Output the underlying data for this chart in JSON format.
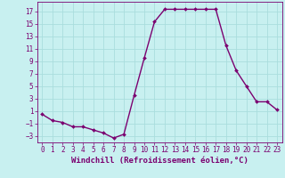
{
  "x": [
    0,
    1,
    2,
    3,
    4,
    5,
    6,
    7,
    8,
    9,
    10,
    11,
    12,
    13,
    14,
    15,
    16,
    17,
    18,
    19,
    20,
    21,
    22,
    23
  ],
  "y": [
    0.5,
    -0.5,
    -0.8,
    -1.5,
    -1.5,
    -2.0,
    -2.5,
    -3.3,
    -2.7,
    3.5,
    9.5,
    15.3,
    17.3,
    17.3,
    17.3,
    17.3,
    17.3,
    17.3,
    11.5,
    7.5,
    5.0,
    2.5,
    2.5,
    1.2
  ],
  "line_color": "#7B0070",
  "marker": "D",
  "markersize": 2.0,
  "linewidth": 1.0,
  "bg_color": "#c8f0f0",
  "grid_color": "#aadddd",
  "xlabel": "Windchill (Refroidissement éolien,°C)",
  "xlabel_fontsize": 6.5,
  "tick_fontsize": 5.5,
  "xlim": [
    -0.5,
    23.5
  ],
  "ylim": [
    -4,
    18.5
  ],
  "yticks": [
    -3,
    -1,
    1,
    3,
    5,
    7,
    9,
    11,
    13,
    15,
    17
  ],
  "xticks": [
    0,
    1,
    2,
    3,
    4,
    5,
    6,
    7,
    8,
    9,
    10,
    11,
    12,
    13,
    14,
    15,
    16,
    17,
    18,
    19,
    20,
    21,
    22,
    23
  ],
  "spine_color": "#7B0070",
  "tick_color": "#7B0070",
  "label_color": "#7B0070"
}
